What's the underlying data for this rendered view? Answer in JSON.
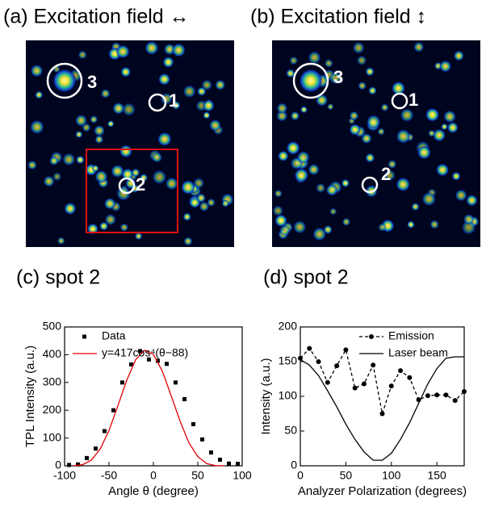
{
  "images": [
    {
      "title": "(a) Excitation field ↔",
      "labels": [
        "3",
        "1",
        "2"
      ]
    },
    {
      "title": "(b) Excitation field ↕",
      "labels": [
        "3",
        "1",
        "2"
      ]
    }
  ],
  "chart_data": [
    {
      "type": "scatter",
      "title": "(c) spot 2",
      "xlabel": "Angle θ (degree)",
      "ylabel": "TPL Intensity (a.u.)",
      "xlim": [
        -100,
        100
      ],
      "ylim": [
        0,
        500
      ],
      "xticks": [
        -100,
        -50,
        0,
        50,
        100
      ],
      "yticks": [
        0,
        100,
        200,
        300,
        400,
        500
      ],
      "legend": "upper-left",
      "series": [
        {
          "name": "Data",
          "color": "#000000",
          "marker": "square",
          "line": null,
          "x": [
            -95,
            -85,
            -75,
            -65,
            -55,
            -45,
            -35,
            -25,
            -15,
            -5,
            5,
            15,
            25,
            35,
            45,
            55,
            65,
            75,
            85,
            95
          ],
          "values": [
            3,
            5,
            28,
            62,
            125,
            200,
            300,
            365,
            413,
            383,
            378,
            367,
            300,
            240,
            150,
            95,
            48,
            22,
            8,
            7
          ]
        },
        {
          "name": "y=417cos⁴(θ−88)",
          "color": "#e00000",
          "marker": null,
          "line": "solid",
          "x": [
            -90,
            -80,
            -70,
            -60,
            -50,
            -40,
            -30,
            -20,
            -10,
            0,
            10,
            20,
            30,
            40,
            50,
            60,
            70,
            80
          ],
          "values": [
            0.2,
            3.8,
            20,
            60,
            127,
            216,
            308,
            382,
            416,
            401,
            341,
            253,
            161,
            83,
            33,
            8,
            0.8,
            0
          ]
        }
      ]
    },
    {
      "type": "line",
      "title": "(d) spot 2",
      "xlabel": "Analyzer Polarization (degrees)",
      "ylabel": "Intensity (a.u.)",
      "xlim": [
        0,
        180
      ],
      "ylim": [
        0,
        200
      ],
      "xticks": [
        0,
        50,
        100,
        150
      ],
      "yticks": [
        0,
        50,
        100,
        150,
        200
      ],
      "legend": "upper-right",
      "series": [
        {
          "name": "Emission",
          "color": "#000000",
          "marker": "circle",
          "line": "dashed",
          "x": [
            0,
            10,
            20,
            30,
            40,
            50,
            60,
            70,
            80,
            90,
            100,
            110,
            120,
            130,
            140,
            150,
            160,
            170,
            180
          ],
          "values": [
            155,
            169,
            150,
            120,
            144,
            167,
            112,
            118,
            145,
            75,
            115,
            137,
            127,
            95,
            101,
            102,
            102,
            94,
            107
          ]
        },
        {
          "name": "Laser beam",
          "color": "#000000",
          "marker": null,
          "line": "solid",
          "x": [
            0,
            10,
            20,
            30,
            40,
            50,
            60,
            70,
            80,
            90,
            100,
            110,
            120,
            130,
            140,
            150,
            160,
            170,
            180
          ],
          "values": [
            153,
            145,
            130,
            108,
            85,
            60,
            38,
            20,
            8,
            8,
            18,
            38,
            62,
            90,
            118,
            140,
            155,
            157,
            157
          ]
        }
      ]
    }
  ]
}
